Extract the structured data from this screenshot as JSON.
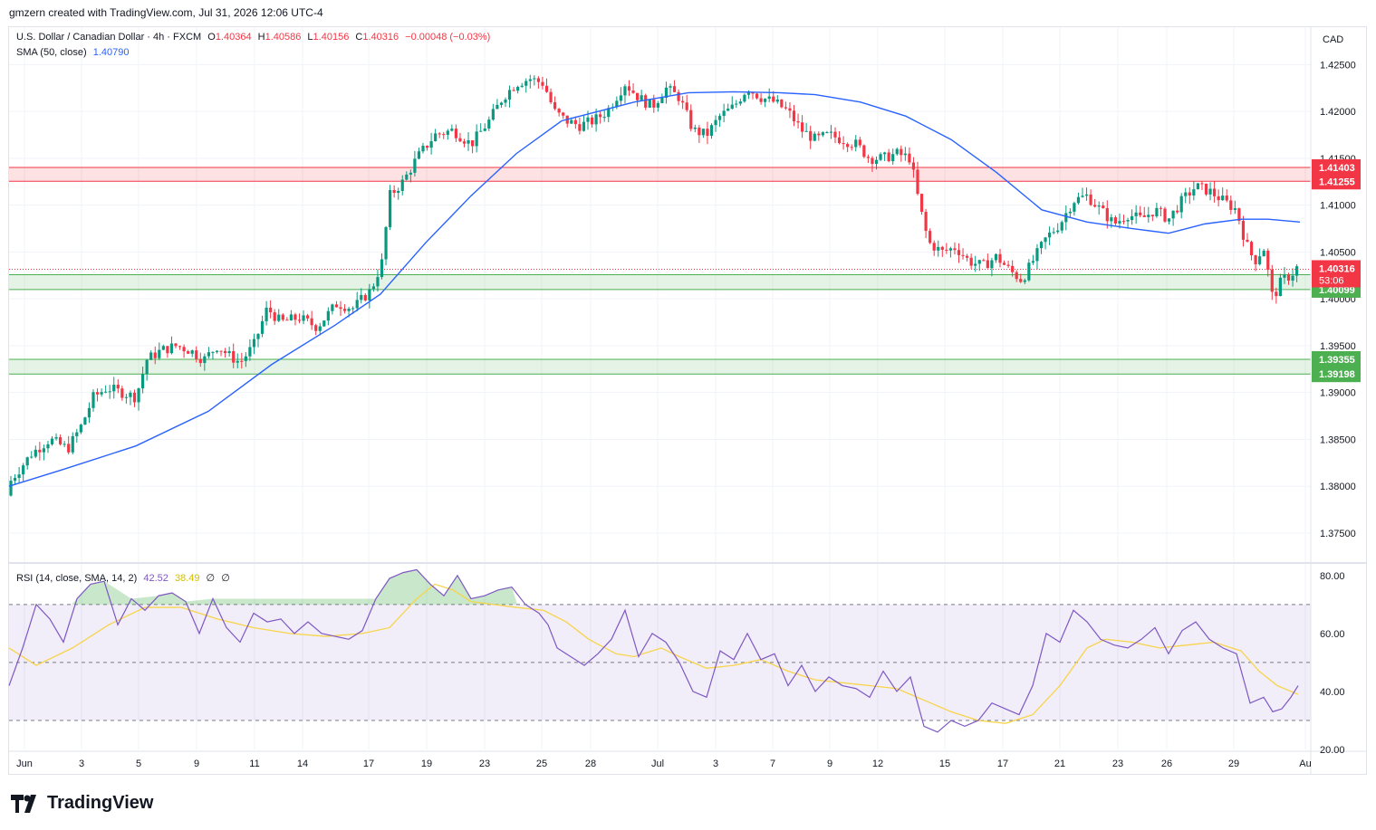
{
  "header": {
    "text": "gmzern created with TradingView.com, Jul 31, 2026 12:06 UTC-4"
  },
  "legend": {
    "symbol": "U.S. Dollar / Canadian Dollar · 4h · FXCM",
    "o_label": "O",
    "o": "1.40364",
    "h_label": "H",
    "h": "1.40586",
    "l_label": "L",
    "l": "1.40156",
    "c_label": "C",
    "c": "1.40316",
    "change": "−0.00048 (−0.03%)",
    "sma_label": "SMA (50, close)",
    "sma_value": "1.40790",
    "rsi_label": "RSI (14, close, SMA, 14, 2)",
    "rsi_value": "42.52",
    "rsi_ma_value": "38.49",
    "rsi_extra1": "∅",
    "rsi_extra2": "∅"
  },
  "currency": "CAD",
  "footer": {
    "brand": "TradingView"
  },
  "colors": {
    "up": "#089981",
    "down": "#f23645",
    "sma": "#2962ff",
    "rsi": "#7e57c2",
    "rsi_ma": "#f7d44a",
    "resistance_zone": "#f23645",
    "support_zone": "#4caf50"
  },
  "chart_data": {
    "type": "candlestick",
    "symbol": "USD/CAD",
    "timeframe": "4h",
    "price_axis": {
      "ticks": [
        "1.42500",
        "1.42000",
        "1.41500",
        "1.41000",
        "1.40500",
        "1.40000",
        "1.39500",
        "1.39000",
        "1.38500",
        "1.38000",
        "1.37500"
      ],
      "range": [
        1.372,
        1.429
      ]
    },
    "time_axis": {
      "labels": [
        "Jun",
        "3",
        "5",
        "9",
        "11",
        "14",
        "17",
        "19",
        "23",
        "25",
        "28",
        "Jul",
        "3",
        "7",
        "9",
        "12",
        "15",
        "17",
        "21",
        "23",
        "26",
        "29",
        "Au"
      ]
    },
    "price_labels": {
      "last": "1.40316",
      "countdown": "53:06",
      "zones": [
        {
          "kind": "resistance",
          "top": "1.41403",
          "bottom": "1.41255",
          "top_v": 1.41403,
          "bottom_v": 1.41255
        },
        {
          "kind": "support",
          "top": "1.40258",
          "bottom": "1.40099",
          "top_v": 1.40258,
          "bottom_v": 1.40099
        },
        {
          "kind": "support",
          "top": "1.39355",
          "bottom": "1.39198",
          "top_v": 1.39355,
          "bottom_v": 1.39198
        }
      ]
    },
    "price_path": [
      [
        0,
        1.379
      ],
      [
        15,
        1.381
      ],
      [
        35,
        1.3835
      ],
      [
        55,
        1.385
      ],
      [
        75,
        1.384
      ],
      [
        90,
        1.3865
      ],
      [
        103,
        1.3895
      ],
      [
        118,
        1.3905
      ],
      [
        135,
        1.39
      ],
      [
        150,
        1.3895
      ],
      [
        162,
        1.3935
      ],
      [
        178,
        1.3945
      ],
      [
        195,
        1.395
      ],
      [
        210,
        1.3945
      ],
      [
        225,
        1.3935
      ],
      [
        240,
        1.395
      ],
      [
        252,
        1.394
      ],
      [
        265,
        1.3932
      ],
      [
        280,
        1.395
      ],
      [
        295,
        1.399
      ],
      [
        310,
        1.3975
      ],
      [
        330,
        1.398
      ],
      [
        350,
        1.397
      ],
      [
        372,
        1.3995
      ],
      [
        390,
        1.399
      ],
      [
        410,
        1.401
      ],
      [
        422,
        1.404
      ],
      [
        430,
        1.411
      ],
      [
        445,
        1.4125
      ],
      [
        460,
        1.415
      ],
      [
        480,
        1.4175
      ],
      [
        500,
        1.418
      ],
      [
        520,
        1.4165
      ],
      [
        540,
        1.419
      ],
      [
        555,
        1.4215
      ],
      [
        570,
        1.423
      ],
      [
        585,
        1.4235
      ],
      [
        600,
        1.423
      ],
      [
        612,
        1.42
      ],
      [
        625,
        1.419
      ],
      [
        640,
        1.4185
      ],
      [
        655,
        1.419
      ],
      [
        670,
        1.42
      ],
      [
        690,
        1.423
      ],
      [
        705,
        1.4215
      ],
      [
        720,
        1.4205
      ],
      [
        735,
        1.4225
      ],
      [
        750,
        1.4215
      ],
      [
        765,
        1.418
      ],
      [
        780,
        1.4175
      ],
      [
        795,
        1.4195
      ],
      [
        810,
        1.4205
      ],
      [
        825,
        1.4225
      ],
      [
        840,
        1.4215
      ],
      [
        855,
        1.421
      ],
      [
        870,
        1.42
      ],
      [
        885,
        1.418
      ],
      [
        900,
        1.417
      ],
      [
        915,
        1.4175
      ],
      [
        930,
        1.417
      ],
      [
        945,
        1.4165
      ],
      [
        960,
        1.415
      ],
      [
        975,
        1.415
      ],
      [
        990,
        1.4155
      ],
      [
        1005,
        1.415
      ],
      [
        1015,
        1.41
      ],
      [
        1025,
        1.406
      ],
      [
        1040,
        1.405
      ],
      [
        1055,
        1.4055
      ],
      [
        1070,
        1.404
      ],
      [
        1085,
        1.4035
      ],
      [
        1100,
        1.4045
      ],
      [
        1115,
        1.403
      ],
      [
        1128,
        1.402
      ],
      [
        1140,
        1.404
      ],
      [
        1155,
        1.4065
      ],
      [
        1170,
        1.408
      ],
      [
        1185,
        1.4105
      ],
      [
        1200,
        1.411
      ],
      [
        1215,
        1.4095
      ],
      [
        1230,
        1.408
      ],
      [
        1245,
        1.409
      ],
      [
        1260,
        1.4085
      ],
      [
        1275,
        1.4095
      ],
      [
        1290,
        1.4085
      ],
      [
        1305,
        1.4105
      ],
      [
        1320,
        1.412
      ],
      [
        1335,
        1.4115
      ],
      [
        1350,
        1.4105
      ],
      [
        1365,
        1.4095
      ],
      [
        1375,
        1.406
      ],
      [
        1385,
        1.404
      ],
      [
        1395,
        1.4055
      ],
      [
        1405,
        1.4
      ],
      [
        1415,
        1.402
      ],
      [
        1425,
        1.4025
      ],
      [
        1433,
        1.4035
      ]
    ],
    "sma_path": [
      [
        10,
        1.38
      ],
      [
        70,
        1.3818
      ],
      [
        150,
        1.3843
      ],
      [
        230,
        1.388
      ],
      [
        300,
        1.393
      ],
      [
        370,
        1.3972
      ],
      [
        420,
        1.4005
      ],
      [
        470,
        1.406
      ],
      [
        520,
        1.411
      ],
      [
        570,
        1.4155
      ],
      [
        620,
        1.419
      ],
      [
        660,
        1.42
      ],
      [
        700,
        1.421
      ],
      [
        760,
        1.422
      ],
      [
        810,
        1.4221
      ],
      [
        860,
        1.422
      ],
      [
        900,
        1.4218
      ],
      [
        950,
        1.421
      ],
      [
        1000,
        1.4195
      ],
      [
        1050,
        1.417
      ],
      [
        1100,
        1.4135
      ],
      [
        1150,
        1.4095
      ],
      [
        1200,
        1.4082
      ],
      [
        1250,
        1.4075
      ],
      [
        1290,
        1.407
      ],
      [
        1330,
        1.408
      ],
      [
        1370,
        1.4085
      ],
      [
        1400,
        1.4085
      ],
      [
        1435,
        1.4082
      ]
    ],
    "rsi": {
      "axis_ticks": [
        "80.00",
        "60.00",
        "40.00",
        "20.00"
      ],
      "levels": [
        70,
        50,
        30
      ],
      "range": [
        20,
        84
      ],
      "series": [
        [
          10,
          42
        ],
        [
          25,
          55
        ],
        [
          40,
          70
        ],
        [
          55,
          65
        ],
        [
          70,
          57
        ],
        [
          85,
          72
        ],
        [
          100,
          77
        ],
        [
          115,
          78
        ],
        [
          130,
          63
        ],
        [
          145,
          72
        ],
        [
          160,
          68
        ],
        [
          175,
          73
        ],
        [
          190,
          74
        ],
        [
          205,
          71
        ],
        [
          220,
          60
        ],
        [
          235,
          72
        ],
        [
          250,
          62
        ],
        [
          265,
          57
        ],
        [
          280,
          67
        ],
        [
          295,
          64
        ],
        [
          310,
          65
        ],
        [
          325,
          60
        ],
        [
          340,
          64
        ],
        [
          355,
          60
        ],
        [
          370,
          59
        ],
        [
          385,
          58
        ],
        [
          400,
          61
        ],
        [
          415,
          72
        ],
        [
          430,
          79
        ],
        [
          445,
          81
        ],
        [
          460,
          82
        ],
        [
          475,
          77
        ],
        [
          490,
          73
        ],
        [
          505,
          80
        ],
        [
          520,
          72
        ],
        [
          535,
          73
        ],
        [
          550,
          75
        ],
        [
          565,
          76
        ],
        [
          580,
          70
        ],
        [
          595,
          67
        ],
        [
          605,
          63
        ],
        [
          615,
          55
        ],
        [
          630,
          52
        ],
        [
          645,
          49
        ],
        [
          660,
          53
        ],
        [
          675,
          58
        ],
        [
          690,
          68
        ],
        [
          705,
          52
        ],
        [
          720,
          60
        ],
        [
          735,
          57
        ],
        [
          750,
          50
        ],
        [
          765,
          40
        ],
        [
          780,
          38
        ],
        [
          795,
          54
        ],
        [
          810,
          51
        ],
        [
          825,
          60
        ],
        [
          840,
          51
        ],
        [
          855,
          53
        ],
        [
          870,
          42
        ],
        [
          885,
          49
        ],
        [
          900,
          40
        ],
        [
          915,
          45
        ],
        [
          930,
          42
        ],
        [
          945,
          41
        ],
        [
          960,
          38
        ],
        [
          975,
          47
        ],
        [
          990,
          40
        ],
        [
          1005,
          45
        ],
        [
          1020,
          28
        ],
        [
          1035,
          26
        ],
        [
          1050,
          30
        ],
        [
          1065,
          28
        ],
        [
          1080,
          30
        ],
        [
          1095,
          36
        ],
        [
          1110,
          34
        ],
        [
          1125,
          32
        ],
        [
          1140,
          42
        ],
        [
          1155,
          60
        ],
        [
          1170,
          57
        ],
        [
          1185,
          68
        ],
        [
          1200,
          64
        ],
        [
          1215,
          58
        ],
        [
          1230,
          56
        ],
        [
          1245,
          55
        ],
        [
          1260,
          58
        ],
        [
          1275,
          62
        ],
        [
          1290,
          53
        ],
        [
          1305,
          61
        ],
        [
          1320,
          64
        ],
        [
          1335,
          58
        ],
        [
          1350,
          55
        ],
        [
          1365,
          53
        ],
        [
          1380,
          36
        ],
        [
          1395,
          38
        ],
        [
          1405,
          33
        ],
        [
          1415,
          34
        ],
        [
          1425,
          38
        ],
        [
          1433,
          42
        ]
      ],
      "ma_series": [
        [
          10,
          55
        ],
        [
          40,
          49
        ],
        [
          80,
          55
        ],
        [
          120,
          63
        ],
        [
          160,
          69
        ],
        [
          200,
          69
        ],
        [
          240,
          65
        ],
        [
          280,
          62
        ],
        [
          320,
          60
        ],
        [
          360,
          59
        ],
        [
          400,
          60
        ],
        [
          430,
          62
        ],
        [
          460,
          72
        ],
        [
          480,
          77
        ],
        [
          500,
          75
        ],
        [
          520,
          71
        ],
        [
          545,
          70
        ],
        [
          570,
          69
        ],
        [
          600,
          68
        ],
        [
          625,
          64
        ],
        [
          650,
          58
        ],
        [
          680,
          53
        ],
        [
          700,
          52
        ],
        [
          730,
          55
        ],
        [
          750,
          52
        ],
        [
          780,
          48
        ],
        [
          810,
          49
        ],
        [
          840,
          51
        ],
        [
          870,
          47
        ],
        [
          900,
          44
        ],
        [
          930,
          43
        ],
        [
          960,
          42
        ],
        [
          990,
          41
        ],
        [
          1020,
          37
        ],
        [
          1050,
          33
        ],
        [
          1080,
          30
        ],
        [
          1110,
          29
        ],
        [
          1140,
          32
        ],
        [
          1170,
          42
        ],
        [
          1200,
          55
        ],
        [
          1220,
          58
        ],
        [
          1250,
          57
        ],
        [
          1280,
          55
        ],
        [
          1310,
          56
        ],
        [
          1340,
          57
        ],
        [
          1370,
          54
        ],
        [
          1390,
          47
        ],
        [
          1410,
          42
        ],
        [
          1433,
          39
        ]
      ]
    }
  }
}
